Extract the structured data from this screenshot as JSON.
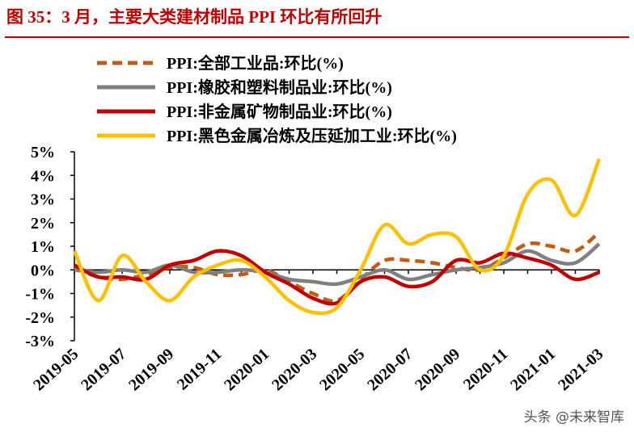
{
  "title": "图 35：3 月，主要大类建材制品 PPI 环比有所回升",
  "watermark": "头条 @未来智库",
  "chart_data": {
    "type": "line",
    "categories": [
      "2019-05",
      null,
      "2019-07",
      null,
      "2019-09",
      null,
      "2019-11",
      null,
      "2020-01",
      null,
      "2020-03",
      null,
      "2020-05",
      null,
      "2020-07",
      null,
      "2020-09",
      null,
      "2020-11",
      null,
      "2021-01",
      null,
      "2021-03"
    ],
    "ylim": [
      -3,
      5
    ],
    "yticks": [
      {
        "value": -3,
        "label": "-3%"
      },
      {
        "value": -2,
        "label": "-2%"
      },
      {
        "value": -1,
        "label": "-1%"
      },
      {
        "value": 0,
        "label": "0%"
      },
      {
        "value": 1,
        "label": "1%"
      },
      {
        "value": 2,
        "label": "2%"
      },
      {
        "value": 3,
        "label": "3%"
      },
      {
        "value": 4,
        "label": "4%"
      },
      {
        "value": 5,
        "label": "5%"
      }
    ],
    "grid": false,
    "legend": "upper left",
    "series": [
      {
        "name": "PPI:全部工业品:环比(%)",
        "color": "#c55a11",
        "dashed": true,
        "values": [
          0.1,
          -0.3,
          -0.4,
          -0.2,
          0.1,
          0.1,
          -0.2,
          -0.2,
          0.0,
          -0.5,
          -1.0,
          -1.3,
          -0.4,
          0.4,
          0.4,
          0.3,
          0.1,
          0.0,
          0.5,
          1.1,
          1.0,
          0.8,
          1.6
        ]
      },
      {
        "name": "PPI:橡胶和塑料制品业:环比(%)",
        "color": "#808080",
        "dashed": false,
        "values": [
          0.0,
          -0.1,
          0.0,
          -0.1,
          0.2,
          -0.1,
          -0.1,
          0.0,
          -0.1,
          -0.4,
          -0.5,
          -0.6,
          -0.3,
          0.0,
          -0.4,
          -0.2,
          0.0,
          0.1,
          0.3,
          0.8,
          0.4,
          0.3,
          1.1
        ]
      },
      {
        "name": "PPI:非金属矿物制品业:环比(%)",
        "color": "#c00000",
        "dashed": false,
        "values": [
          0.2,
          -0.3,
          -0.3,
          -0.4,
          0.2,
          0.4,
          0.8,
          0.6,
          -0.1,
          -0.6,
          -1.2,
          -1.4,
          -0.5,
          -0.3,
          -0.7,
          -0.5,
          0.4,
          0.3,
          0.7,
          0.5,
          0.2,
          -0.4,
          -0.1
        ]
      },
      {
        "name": "PPI:黑色金属冶炼及压延加工业:环比(%)",
        "color": "#ffc000",
        "dashed": false,
        "values": [
          0.8,
          -1.3,
          0.6,
          -0.5,
          -1.3,
          -0.3,
          0.2,
          0.4,
          -0.3,
          -1.3,
          -1.8,
          -1.6,
          0.0,
          1.9,
          1.1,
          1.5,
          1.4,
          0.0,
          0.6,
          3.2,
          3.8,
          2.3,
          4.7
        ]
      }
    ]
  }
}
